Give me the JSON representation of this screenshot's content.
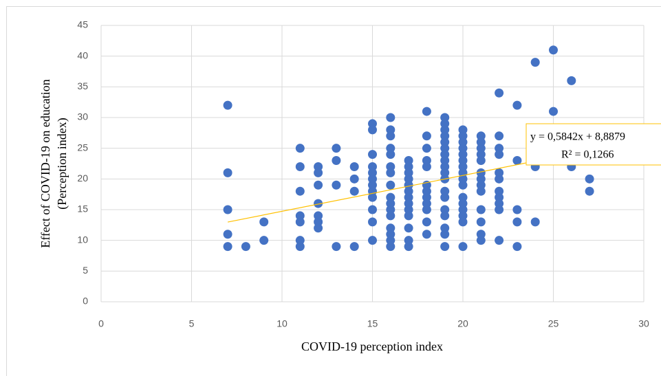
{
  "chart_data": {
    "type": "scatter",
    "xlabel": "COVID-19 perception index",
    "ylabel": [
      "Effect of COVID-19 on education",
      "(Perception index)"
    ],
    "color": "#4472c4",
    "x": [
      7,
      7,
      7,
      7,
      7,
      8,
      9,
      9,
      11,
      11,
      11,
      11,
      11,
      11,
      11,
      12,
      12,
      12,
      12,
      12,
      12,
      12,
      13,
      13,
      13,
      13,
      14,
      14,
      14,
      14,
      15,
      15,
      15,
      15,
      15,
      15,
      15,
      15,
      15,
      15,
      15,
      15,
      16,
      16,
      16,
      16,
      16,
      16,
      16,
      16,
      16,
      16,
      16,
      16,
      16,
      16,
      16,
      16,
      17,
      17,
      17,
      17,
      17,
      17,
      17,
      17,
      17,
      17,
      17,
      17,
      17,
      18,
      18,
      18,
      18,
      18,
      18,
      18,
      18,
      18,
      18,
      18,
      18,
      19,
      19,
      19,
      19,
      19,
      19,
      19,
      19,
      19,
      19,
      19,
      19,
      19,
      19,
      19,
      19,
      19,
      19,
      20,
      20,
      20,
      20,
      20,
      20,
      20,
      20,
      20,
      20,
      20,
      20,
      20,
      20,
      20,
      20,
      21,
      21,
      21,
      21,
      21,
      21,
      21,
      21,
      21,
      21,
      21,
      21,
      21,
      22,
      22,
      22,
      22,
      22,
      22,
      22,
      22,
      22,
      22,
      22,
      23,
      23,
      23,
      23,
      23,
      24,
      24,
      24,
      24,
      25,
      25,
      26,
      26,
      27,
      27
    ],
    "values": [
      32,
      21,
      15,
      11,
      9,
      9,
      13,
      10,
      25,
      22,
      18,
      14,
      13,
      10,
      9,
      22,
      21,
      19,
      16,
      14,
      13,
      12,
      25,
      23,
      19,
      9,
      22,
      20,
      18,
      9,
      29,
      28,
      24,
      22,
      21,
      20,
      19,
      18,
      17,
      15,
      13,
      10,
      30,
      28,
      27,
      25,
      24,
      22,
      21,
      19,
      17,
      16,
      15,
      14,
      12,
      11,
      10,
      9,
      23,
      22,
      21,
      20,
      19,
      18,
      17,
      16,
      15,
      14,
      12,
      10,
      9,
      31,
      27,
      25,
      23,
      22,
      19,
      18,
      17,
      16,
      15,
      13,
      11,
      30,
      29,
      28,
      27,
      26,
      25,
      24,
      23,
      22,
      21,
      20,
      18,
      17,
      15,
      14,
      12,
      11,
      9,
      28,
      27,
      26,
      25,
      24,
      23,
      22,
      21,
      20,
      19,
      17,
      16,
      15,
      14,
      13,
      9,
      27,
      26,
      25,
      24,
      23,
      21,
      20,
      19,
      18,
      15,
      13,
      11,
      10,
      34,
      27,
      25,
      24,
      21,
      20,
      18,
      17,
      16,
      15,
      10,
      32,
      23,
      15,
      13,
      9,
      39,
      24,
      22,
      13,
      41,
      31,
      36,
      22,
      20,
      18
    ],
    "xlim": [
      0,
      30
    ],
    "xticks": [
      0,
      5,
      10,
      15,
      20,
      25,
      30
    ],
    "ylim": [
      0,
      45
    ],
    "yticks": [
      0,
      5,
      10,
      15,
      20,
      25,
      30,
      35,
      40,
      45
    ],
    "grid": true,
    "trendline": {
      "slope": 0.5842,
      "intercept": 8.8879,
      "equation": "y = 0,5842x + 8,8879",
      "r2": "R² = 0,1266",
      "color": "#ffc000"
    }
  }
}
